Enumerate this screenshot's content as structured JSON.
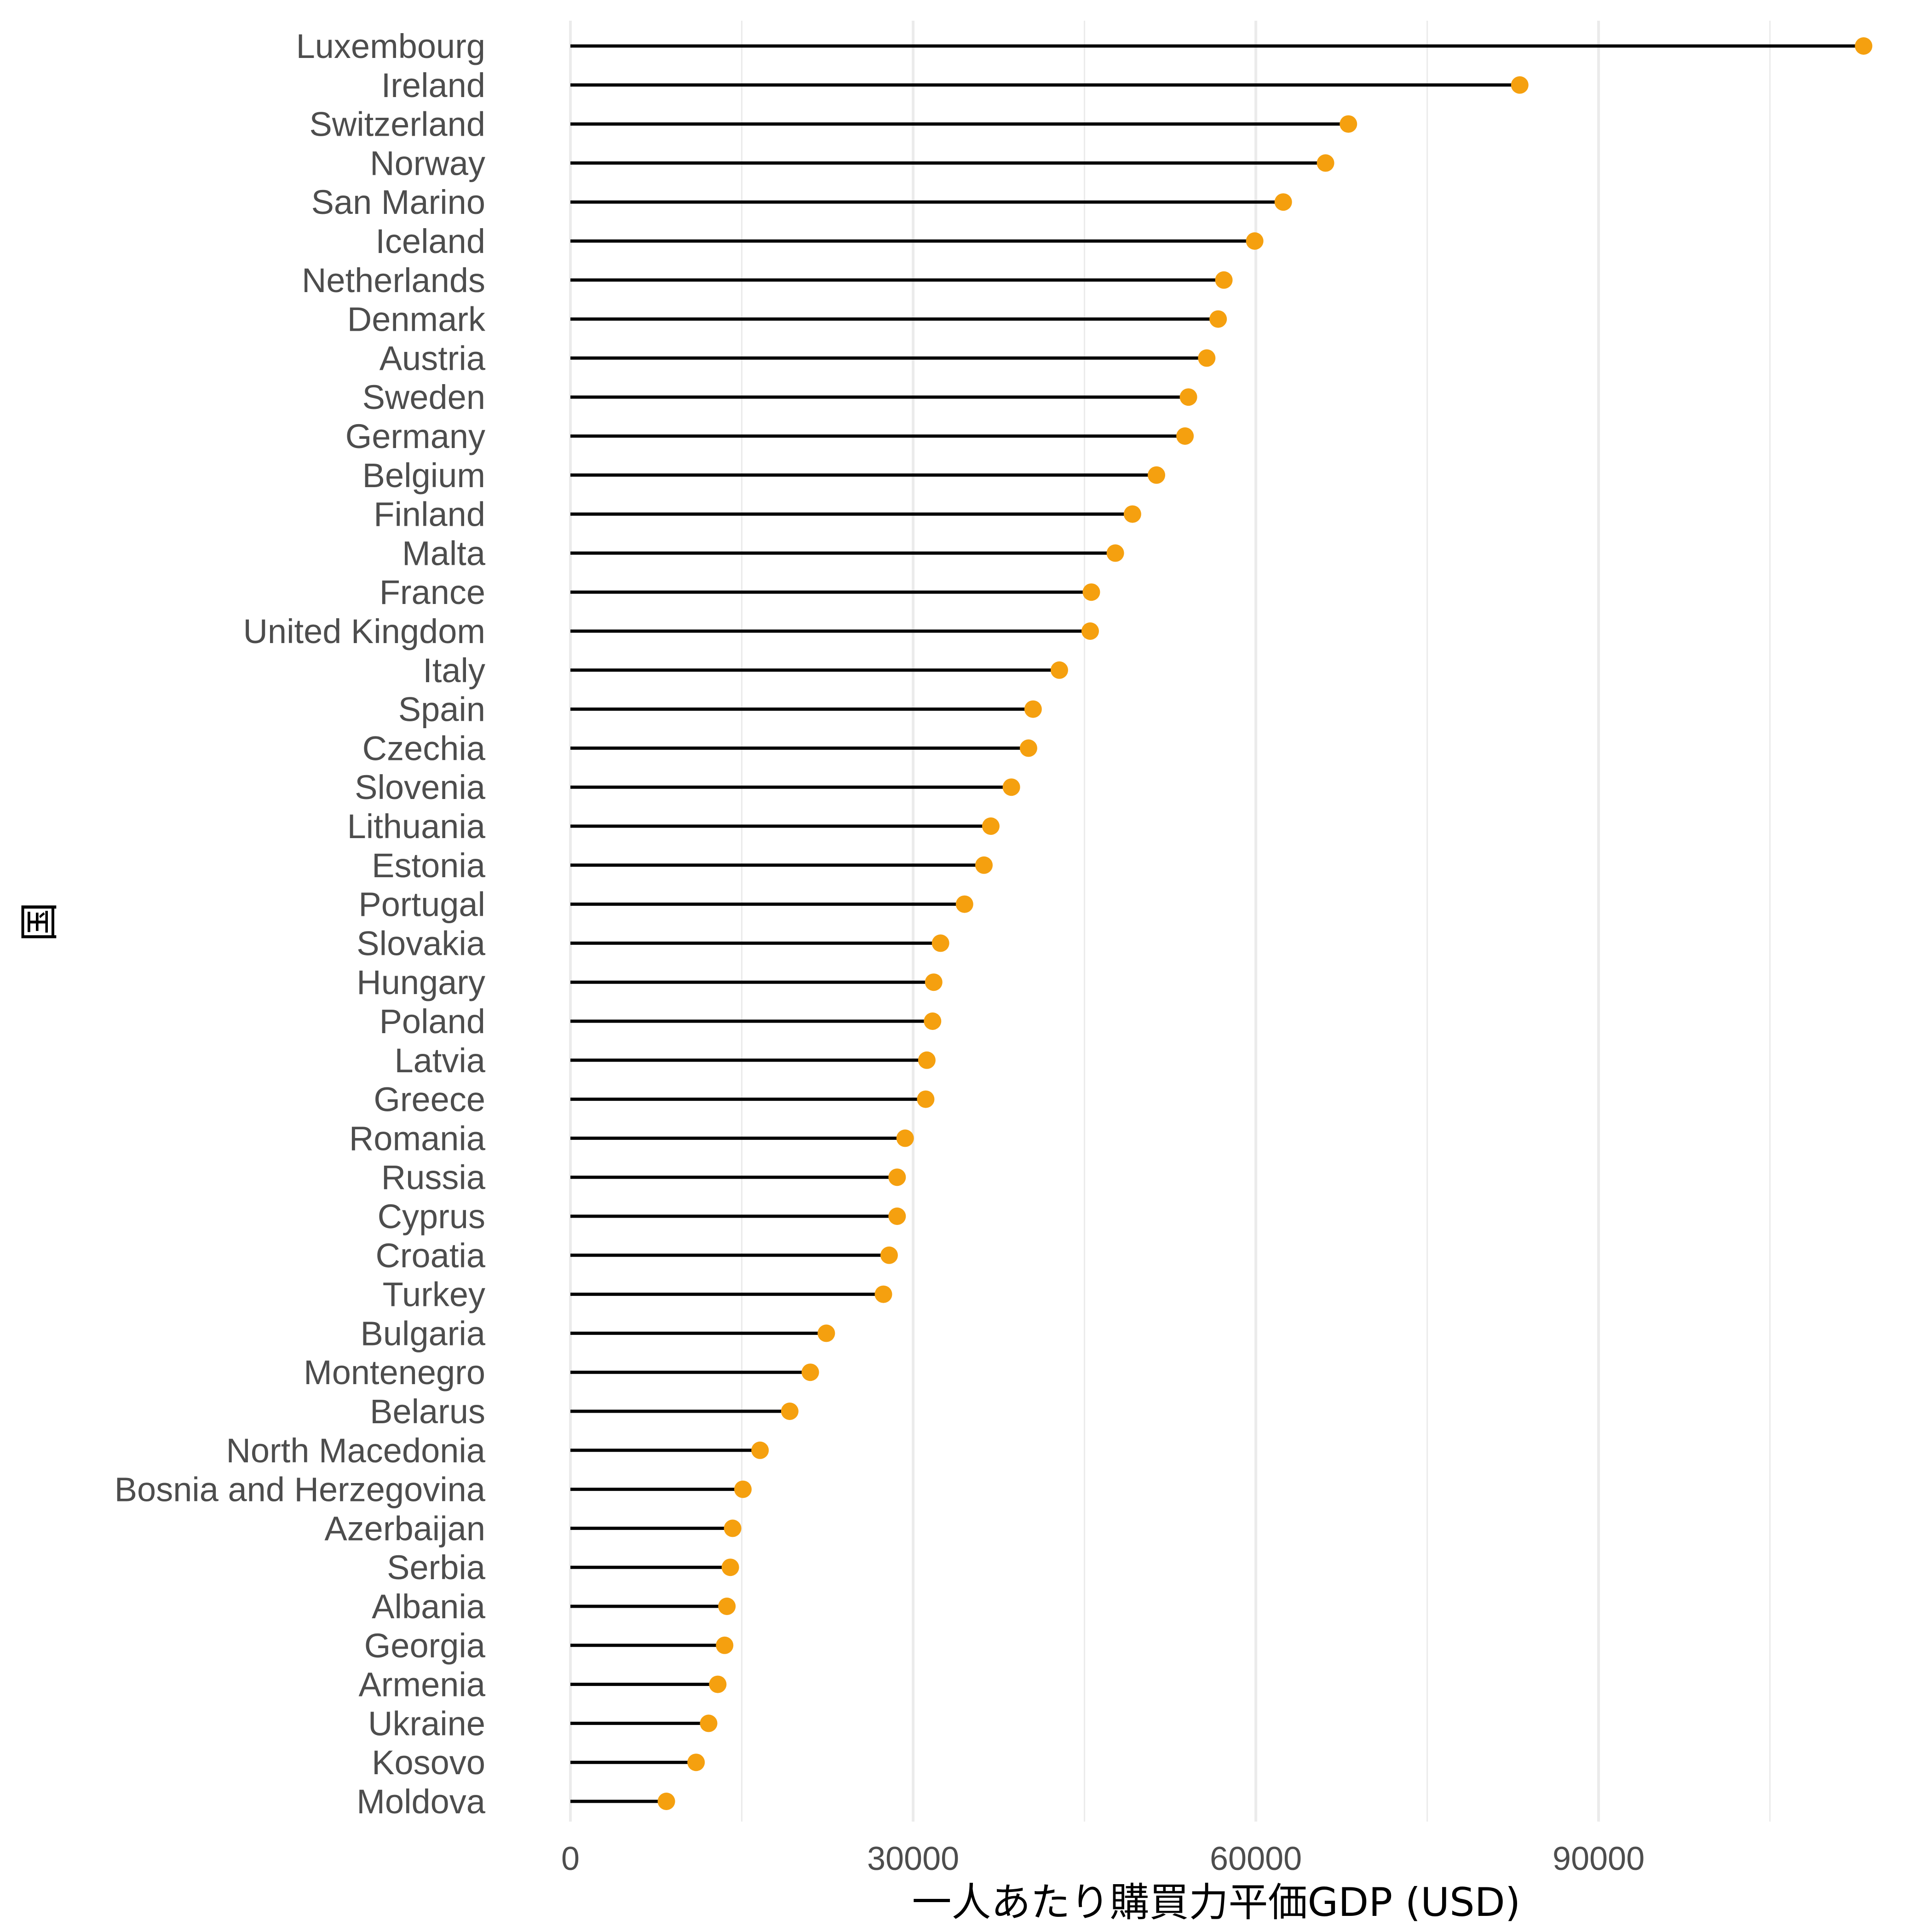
{
  "chart_data": {
    "type": "lollipop",
    "orientation": "horizontal",
    "xlabel": "一人あたり購買力平価GDP (USD)",
    "ylabel": "国",
    "xlim": [
      0,
      115000
    ],
    "x_ticks": [
      0,
      30000,
      60000,
      90000
    ],
    "x_tick_labels": [
      "0",
      "30000",
      "60000",
      "90000"
    ],
    "grid": {
      "major_x": true,
      "minor_x": true,
      "y": false
    },
    "legend": "none",
    "colors": {
      "stem": "#000000",
      "point": "#f5a00f",
      "grid": "#ebebeb"
    },
    "categories": [
      "Luxembourg",
      "Ireland",
      "Switzerland",
      "Norway",
      "San Marino",
      "Iceland",
      "Netherlands",
      "Denmark",
      "Austria",
      "Sweden",
      "Germany",
      "Belgium",
      "Finland",
      "Malta",
      "France",
      "United Kingdom",
      "Italy",
      "Spain",
      "Czechia",
      "Slovenia",
      "Lithuania",
      "Estonia",
      "Portugal",
      "Slovakia",
      "Hungary",
      "Poland",
      "Latvia",
      "Greece",
      "Romania",
      "Russia",
      "Cyprus",
      "Croatia",
      "Turkey",
      "Bulgaria",
      "Montenegro",
      "Belarus",
      "North Macedonia",
      "Bosnia and Herzegovina",
      "Azerbaijan",
      "Serbia",
      "Albania",
      "Georgia",
      "Armenia",
      "Ukraine",
      "Kosovo",
      "Moldova"
    ],
    "values": [
      113200,
      83100,
      68100,
      66100,
      62400,
      59900,
      57200,
      56700,
      55700,
      54100,
      53800,
      51300,
      49200,
      47700,
      45600,
      45500,
      42800,
      40500,
      40100,
      38600,
      36800,
      36200,
      34500,
      32400,
      31800,
      31700,
      31200,
      31100,
      29300,
      28600,
      28600,
      27900,
      27400,
      22400,
      21000,
      19200,
      16600,
      15100,
      14200,
      14000,
      13700,
      13500,
      12900,
      12100,
      11000,
      8400
    ]
  }
}
